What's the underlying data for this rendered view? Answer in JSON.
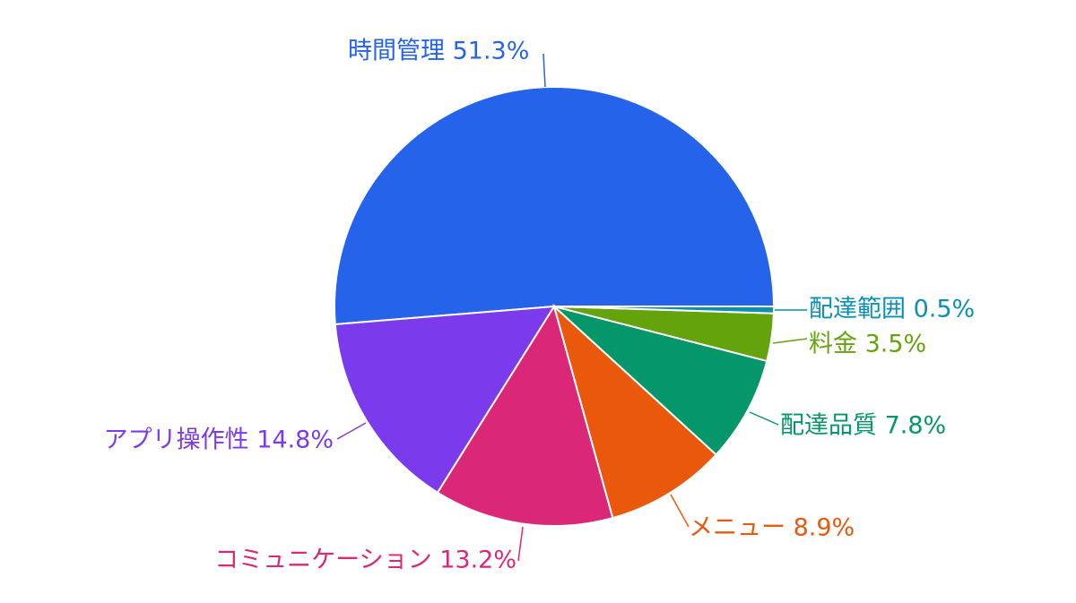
{
  "chart_data": {
    "type": "pie",
    "title": "",
    "slices": [
      {
        "label": "時間管理",
        "value": 51.3,
        "display": "時間管理 51.3%",
        "color": "#2563eb"
      },
      {
        "label": "アプリ操作性",
        "value": 14.8,
        "display": "アプリ操作性 14.8%",
        "color": "#7c3aed"
      },
      {
        "label": "コミュニケーション",
        "value": 13.2,
        "display": "コミュニケーション 13.2%",
        "color": "#db2777"
      },
      {
        "label": "メニュー",
        "value": 8.9,
        "display": "メニュー 8.9%",
        "color": "#ea580c"
      },
      {
        "label": "配達品質",
        "value": 7.8,
        "display": "配達品質 7.8%",
        "color": "#059669"
      },
      {
        "label": "料金",
        "value": 3.5,
        "display": "料金 3.5%",
        "color": "#65a30d"
      },
      {
        "label": "配達範囲",
        "value": 0.5,
        "display": "配達範囲 0.5%",
        "color": "#0891b2"
      }
    ]
  }
}
